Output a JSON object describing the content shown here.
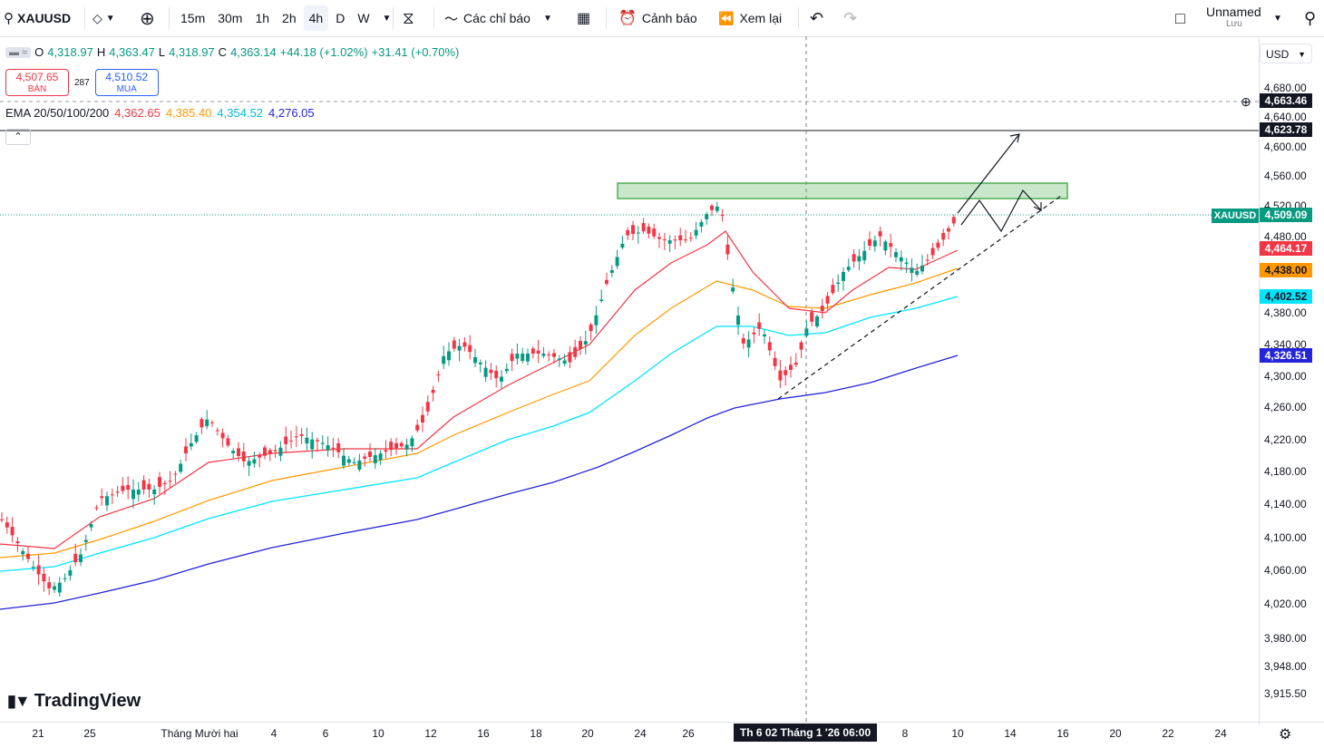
{
  "toolbar": {
    "symbol": "XAUUSD",
    "intervals": [
      "15m",
      "30m",
      "1h",
      "2h",
      "4h",
      "D",
      "W"
    ],
    "active_interval": "4h",
    "indicators_label": "Các chỉ báo",
    "alert_label": "Cảnh báo",
    "replay_label": "Xem lại",
    "layout_name": "Unnamed",
    "layout_sub": "Lưu"
  },
  "legend": {
    "open_label": "O",
    "open": "4,318.97",
    "high_label": "H",
    "high": "4,363.47",
    "low_label": "L",
    "low": "4,318.97",
    "close_label": "C",
    "close": "4,363.14",
    "change": "+44.18 (+1.02%)",
    "change2": "+31.41 (+0.70%)",
    "sell_price": "4,507.65",
    "sell_label": "BÁN",
    "spread": "287",
    "buy_price": "4,510.52",
    "buy_label": "MUA",
    "ema_title": "EMA 20/50/100/200",
    "ema20": "4,362.65",
    "ema50": "4,385.40",
    "ema100": "4,354.52",
    "ema200": "4,276.05"
  },
  "price_axis": {
    "currency": "USD",
    "ticks": [
      "4,680.00",
      "4,640.00",
      "4,600.00",
      "4,560.00",
      "4,520.00",
      "4,480.00",
      "4,440.00",
      "4,380.00",
      "4,340.00",
      "4,300.00",
      "4,260.00",
      "4,220.00",
      "4,180.00",
      "4,140.00",
      "4,100.00",
      "4,060.00",
      "4,020.00",
      "3,980.00",
      "3,948.00",
      "3,915.50"
    ],
    "labels": [
      {
        "text": "4,663.46",
        "color": "#131722"
      },
      {
        "text": "4,623.78",
        "color": "#131722"
      },
      {
        "text": "4,509.09",
        "color": "#089981"
      },
      {
        "text": "4,464.17",
        "color": "#f23645"
      },
      {
        "text": "4,438.00",
        "color": "#ff9800"
      },
      {
        "text": "4,402.52",
        "color": "#00e5ff"
      },
      {
        "text": "4,326.51",
        "color": "#2424d8"
      }
    ],
    "symbol_tag": "XAUUSD"
  },
  "time_axis": {
    "ticks": [
      "21",
      "25",
      "Tháng Mười hai",
      "4",
      "6",
      "10",
      "12",
      "16",
      "18",
      "20",
      "24",
      "26",
      "8",
      "10",
      "14",
      "16",
      "20",
      "22",
      "24"
    ],
    "crosshair": "Th 6 02 Tháng 1 '26   06:00"
  },
  "brand": "TradingView",
  "colors": {
    "up": "#089981",
    "down": "#f23645",
    "ema20": "#f23645",
    "ema50": "#ff9800",
    "ema100": "#00e5ff",
    "ema200": "#2424d8",
    "zone": "#4caf50"
  },
  "chart_data": {
    "type": "candlestick",
    "title": "",
    "ylim": [
      3900,
      4700
    ],
    "series": [
      {
        "name": "EMA 20",
        "values": [
          4100,
          4120,
          4160,
          4200,
          4230,
          4245,
          4270,
          4290,
          4330,
          4400,
          4480,
          4500,
          4420,
          4340,
          4360,
          4420,
          4460
        ]
      },
      {
        "name": "EMA 50",
        "values": [
          4060,
          4090,
          4120,
          4160,
          4180,
          4190,
          4220,
          4250,
          4280,
          4330,
          4400,
          4420,
          4380,
          4360,
          4380,
          4410,
          4438
        ]
      },
      {
        "name": "EMA 100",
        "values": [
          4040,
          4070,
          4100,
          4120,
          4140,
          4160,
          4180,
          4200,
          4240,
          4290,
          4340,
          4380,
          4370,
          4370,
          4380,
          4395,
          4402
        ]
      },
      {
        "name": "EMA 200",
        "values": [
          3990,
          4010,
          4030,
          4060,
          4085,
          4105,
          4120,
          4140,
          4170,
          4205,
          4240,
          4270,
          4275,
          4280,
          4295,
          4310,
          4326
        ]
      }
    ]
  }
}
